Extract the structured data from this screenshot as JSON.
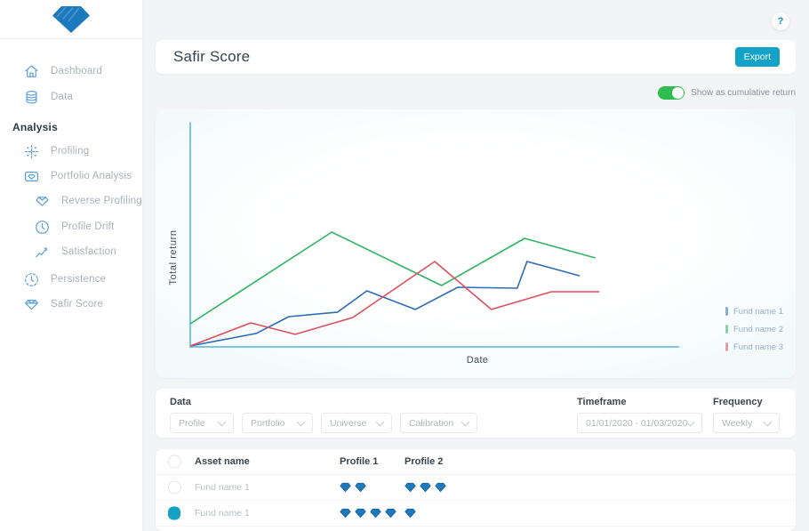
{
  "app": {
    "help_button_label": "?"
  },
  "sidebar": {
    "top_items": [
      {
        "id": "dashboard",
        "label": "Dashboard",
        "icon": "home-icon",
        "indent": 0
      },
      {
        "id": "data",
        "label": "Data",
        "icon": "database-icon",
        "indent": 0
      }
    ],
    "section_label": "Analysis",
    "section_items": [
      {
        "id": "profiling",
        "label": "Profiling",
        "icon": "profiling-scatter-icon",
        "indent": 0
      },
      {
        "id": "portfolio-analysis",
        "label": "Portfolio Analysis",
        "icon": "portfolio-analysis-icon",
        "indent": 0
      },
      {
        "id": "reverse-profiling",
        "label": "Reverse Profiling",
        "icon": "reverse-profiling-gem-icon",
        "indent": 1
      },
      {
        "id": "profile-drift",
        "label": "Profile Drift",
        "icon": "profile-drift-clock-icon",
        "indent": 1
      },
      {
        "id": "satisfaction",
        "label": "Satisfaction",
        "icon": "satisfaction-trend-icon",
        "indent": 1
      },
      {
        "id": "persistence",
        "label": "Persistence",
        "icon": "persistence-dashed-clock-icon",
        "indent": 0
      },
      {
        "id": "safir-score",
        "label": "Safir Score",
        "icon": "gem-outline-icon",
        "indent": 0
      }
    ]
  },
  "header": {
    "title": "Safir Score",
    "export_label": "Export"
  },
  "cumulative_toggle": {
    "label": "Show as cumulative return",
    "state": "on"
  },
  "chart_data": {
    "type": "line",
    "title": "",
    "xlabel": "Date",
    "ylabel": "Total return",
    "x_ticks": [],
    "y_ticks": [],
    "note": "axes carry no tick labels; point values are fractions of plot width/height read from the pixels",
    "legend_position": "right",
    "series": [
      {
        "name": "Fund name 1",
        "color": "#2c6cb5",
        "points": [
          [
            0,
            0.004
          ],
          [
            0.135,
            0.06
          ],
          [
            0.202,
            0.135
          ],
          [
            0.302,
            0.155
          ],
          [
            0.362,
            0.25
          ],
          [
            0.461,
            0.167
          ],
          [
            0.548,
            0.266
          ],
          [
            0.67,
            0.262
          ],
          [
            0.69,
            0.381
          ],
          [
            0.798,
            0.317
          ]
        ]
      },
      {
        "name": "Fund name 2",
        "color": "#2db661",
        "points": [
          [
            0,
            0.103
          ],
          [
            0.29,
            0.512
          ],
          [
            0.515,
            0.274
          ],
          [
            0.685,
            0.484
          ],
          [
            0.83,
            0.397
          ]
        ]
      },
      {
        "name": "Fund name 3",
        "color": "#de4f5c",
        "points": [
          [
            0,
            0.004
          ],
          [
            0.124,
            0.107
          ],
          [
            0.215,
            0.056
          ],
          [
            0.333,
            0.131
          ],
          [
            0.501,
            0.381
          ],
          [
            0.617,
            0.167
          ],
          [
            0.74,
            0.246
          ],
          [
            0.838,
            0.246
          ]
        ]
      }
    ]
  },
  "filters": {
    "data_label": "Data",
    "data_dropdowns": [
      {
        "value": "Profile"
      },
      {
        "value": "Portfolio"
      },
      {
        "value": "Universe"
      },
      {
        "value": "Calibration"
      }
    ],
    "timeframe_label": "Timeframe",
    "timeframe_value": "01/01/2020 - 01/03/2020",
    "frequency_label": "Frequency",
    "frequency_value": "Weekly"
  },
  "table": {
    "columns": [
      "Asset name",
      "Profile 1",
      "Profile 2"
    ],
    "rows": [
      {
        "asset_name": "Fund name 1",
        "checked": false,
        "profile1_gems": 2,
        "profile2_gems": 3
      },
      {
        "asset_name": "Fund name 1",
        "checked": true,
        "profile1_gems": 4,
        "profile2_gems": 1
      }
    ]
  },
  "colors": {
    "accent_teal": "#14a3c7",
    "toggle_green": "#2ebd4e",
    "gem_blue": "#1d79bd",
    "gem_edge_blue": "#15639c",
    "sidebar_icon_blue": "#5ba0d8",
    "axis_blue": "#7cc5e3"
  }
}
